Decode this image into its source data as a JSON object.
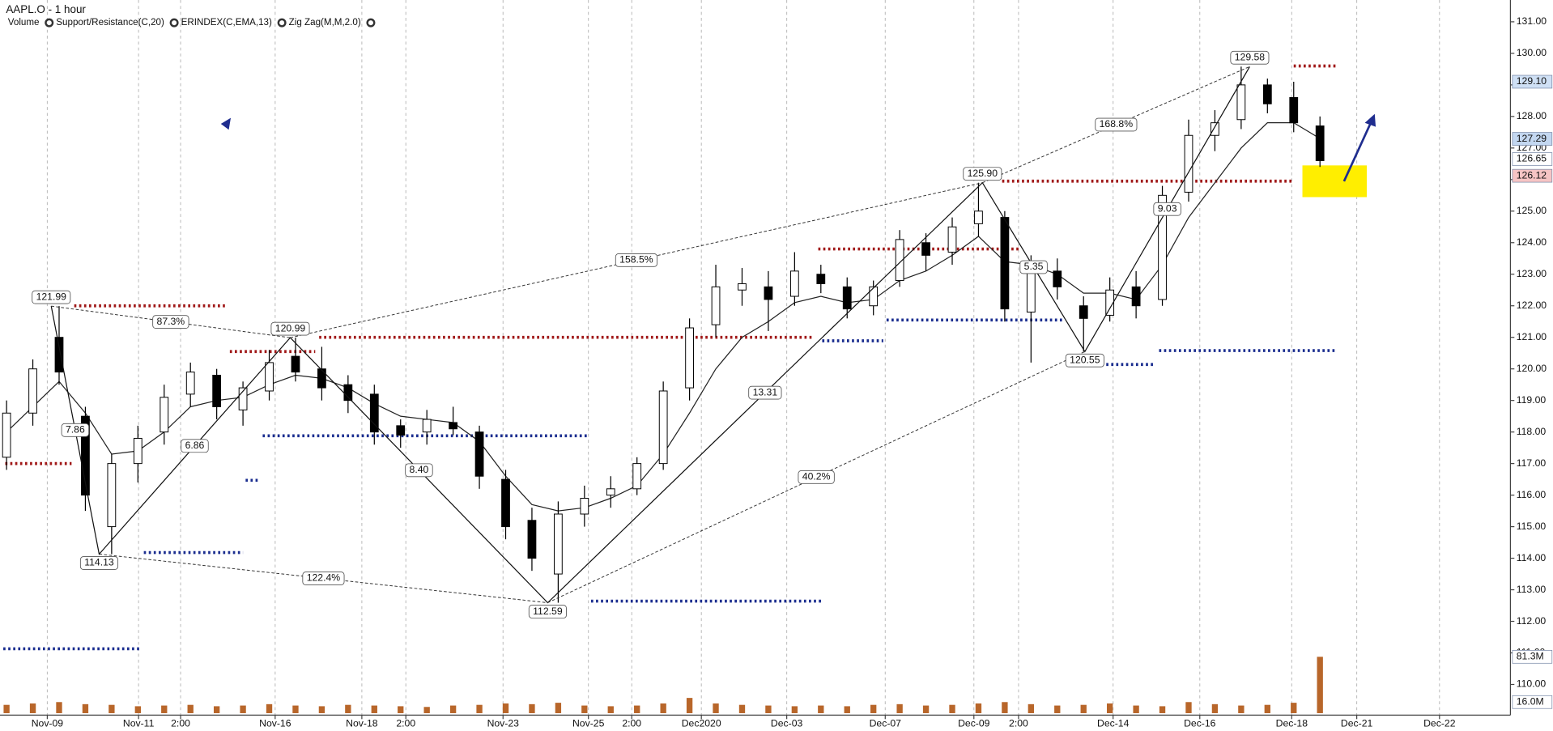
{
  "header": {
    "title": "AAPL.O - 1 hour",
    "indicators": [
      {
        "name": "Volume",
        "color": "#d86a00"
      },
      {
        "name": "Support/Resistance(C,20)",
        "color": "#a01818"
      },
      {
        "name": "ERINDEX(C,EMA,13)",
        "color": "#222222"
      },
      {
        "name": "Zig Zag(M,M,2.0)",
        "color": "#222222"
      }
    ]
  },
  "chart_data": {
    "type": "candlestick",
    "x": [
      1,
      5,
      9,
      13,
      17,
      21,
      25,
      29,
      33,
      37,
      41,
      45,
      49,
      53,
      57,
      61,
      65,
      69,
      73,
      77,
      81,
      85,
      89,
      93,
      97,
      101,
      105,
      109,
      113,
      117,
      121,
      125,
      129,
      133,
      137,
      141,
      145,
      149,
      153,
      157,
      161,
      165,
      169,
      173,
      177,
      181,
      185,
      189,
      193,
      197,
      201
    ],
    "open": [
      117.2,
      118.6,
      121.0,
      118.5,
      115.0,
      117.0,
      118.0,
      119.2,
      119.8,
      118.7,
      119.3,
      120.4,
      120.0,
      119.5,
      119.2,
      118.2,
      118.0,
      118.3,
      118.0,
      116.5,
      115.2,
      113.5,
      115.4,
      116.0,
      116.2,
      117.0,
      119.4,
      121.4,
      122.5,
      122.6,
      122.3,
      123.0,
      122.6,
      122.0,
      122.8,
      124.0,
      123.7,
      124.6,
      124.8,
      121.8,
      123.1,
      122.0,
      121.7,
      122.6,
      122.2,
      125.6,
      127.4,
      127.9,
      129.0,
      128.6,
      127.7
    ],
    "high": [
      119.0,
      120.3,
      121.99,
      118.8,
      117.3,
      118.2,
      119.5,
      120.2,
      120.0,
      119.6,
      120.6,
      120.99,
      120.7,
      119.8,
      119.5,
      118.4,
      118.7,
      118.8,
      118.2,
      116.8,
      115.6,
      115.8,
      116.3,
      116.6,
      117.2,
      119.6,
      121.6,
      123.3,
      123.2,
      123.1,
      123.7,
      123.3,
      122.9,
      122.8,
      124.4,
      124.3,
      124.8,
      125.9,
      125.0,
      123.6,
      123.5,
      122.3,
      122.9,
      123.1,
      125.8,
      127.9,
      128.2,
      129.58,
      129.2,
      129.1,
      128.0
    ],
    "low": [
      116.8,
      118.2,
      119.5,
      115.5,
      114.13,
      116.4,
      117.6,
      118.8,
      118.4,
      118.2,
      119.0,
      119.6,
      119.0,
      118.6,
      117.6,
      117.5,
      117.6,
      117.9,
      116.2,
      114.6,
      113.6,
      112.59,
      115.0,
      115.6,
      116.0,
      116.8,
      119.0,
      121.0,
      122.0,
      121.2,
      122.0,
      122.4,
      121.6,
      121.7,
      122.6,
      123.1,
      123.3,
      124.2,
      121.5,
      120.2,
      122.2,
      120.55,
      121.5,
      121.6,
      122.0,
      125.3,
      126.9,
      127.6,
      128.1,
      127.5,
      126.4
    ],
    "close": [
      118.6,
      120.0,
      119.9,
      116.0,
      117.0,
      117.8,
      119.1,
      119.9,
      118.8,
      119.4,
      120.2,
      119.9,
      119.4,
      119.0,
      118.0,
      117.9,
      118.4,
      118.1,
      116.6,
      115.0,
      114.0,
      115.4,
      115.9,
      116.2,
      117.0,
      119.3,
      121.3,
      122.6,
      122.7,
      122.2,
      123.1,
      122.7,
      121.9,
      122.6,
      124.1,
      123.6,
      124.5,
      125.0,
      121.9,
      123.2,
      122.6,
      121.6,
      122.5,
      122.0,
      125.5,
      127.4,
      127.8,
      129.0,
      128.4,
      127.8,
      126.6
    ],
    "ema": [
      118.0,
      118.8,
      119.6,
      118.6,
      117.3,
      117.4,
      118.0,
      118.8,
      119.0,
      119.1,
      119.5,
      119.8,
      119.7,
      119.4,
      118.9,
      118.5,
      118.4,
      118.3,
      117.7,
      116.6,
      115.7,
      115.5,
      115.6,
      115.9,
      116.3,
      117.3,
      118.6,
      120.0,
      121.0,
      121.5,
      122.1,
      122.3,
      122.1,
      122.2,
      122.8,
      123.1,
      123.6,
      124.2,
      123.4,
      123.3,
      123.0,
      122.4,
      122.4,
      122.2,
      123.3,
      124.8,
      125.9,
      127.0,
      127.8,
      127.8,
      127.3
    ],
    "up_color": "#ffffff",
    "down_color": "#000000",
    "ema_color": "#222222",
    "volume": {
      "values": [
        12,
        14,
        16,
        13,
        12,
        10,
        11,
        12,
        10,
        11,
        13,
        11,
        10,
        12,
        11,
        10,
        9,
        11,
        12,
        14,
        13,
        15,
        11,
        10,
        11,
        14,
        22,
        14,
        12,
        11,
        10,
        11,
        10,
        12,
        13,
        11,
        12,
        14,
        16,
        13,
        11,
        12,
        14,
        11,
        10,
        16,
        13,
        11,
        12,
        15,
        81.3
      ],
      "ylim": [
        0,
        90
      ],
      "color": "#b8662a",
      "markers": [
        {
          "value": 81.3,
          "label": "81.3M"
        },
        {
          "value": 16.0,
          "label": "16.0M"
        }
      ]
    },
    "zigzag": {
      "x": [
        7.8,
        15.1,
        44.2,
        83.4,
        149.6,
        165.2,
        190.3
      ],
      "values": [
        121.99,
        114.13,
        120.99,
        112.59,
        125.9,
        120.55,
        129.58
      ],
      "value_labels": [
        "121.99",
        "114.13",
        "120.99",
        "112.59",
        "125.90",
        "120.55",
        "129.58"
      ],
      "swing_labels": [
        "7.86",
        "6.86",
        "8.40",
        "13.31",
        "5.35",
        "9.03"
      ],
      "ratio_labels": [
        "87.3%",
        "122.4%",
        "158.5%",
        "40.2%",
        "168.8%"
      ]
    },
    "levels": [
      {
        "price": 117.0,
        "start": 0.8,
        "end": 10.9,
        "color": "#a01818"
      },
      {
        "price": 122.0,
        "start": 11.3,
        "end": 34.4,
        "color": "#a01818"
      },
      {
        "price": 120.55,
        "start": 35,
        "end": 48,
        "color": "#a01818"
      },
      {
        "price": 121.0,
        "start": 48.6,
        "end": 123.7,
        "color": "#a01818"
      },
      {
        "price": 123.8,
        "start": 124.6,
        "end": 155.4,
        "color": "#a01818"
      },
      {
        "price": 125.95,
        "start": 152.6,
        "end": 196.8,
        "color": "#a01818"
      },
      {
        "price": 129.6,
        "start": 197,
        "end": 203.6,
        "color": "#a01818"
      },
      {
        "price": 111.13,
        "start": 0.5,
        "end": 21.4,
        "color": "#1a2d8f"
      },
      {
        "price": 114.18,
        "start": 21.9,
        "end": 37,
        "color": "#1a2d8f"
      },
      {
        "price": 116.47,
        "start": 37.4,
        "end": 39.5,
        "color": "#1a2d8f"
      },
      {
        "price": 117.88,
        "start": 40,
        "end": 89.7,
        "color": "#1a2d8f"
      },
      {
        "price": 112.64,
        "start": 90,
        "end": 125.2,
        "color": "#1a2d8f"
      },
      {
        "price": 120.89,
        "start": 125.2,
        "end": 134.5,
        "color": "#1a2d8f"
      },
      {
        "price": 121.55,
        "start": 135,
        "end": 162,
        "color": "#1a2d8f"
      },
      {
        "price": 120.14,
        "start": 167.7,
        "end": 175.7,
        "color": "#1a2d8f"
      },
      {
        "price": 120.58,
        "start": 176.5,
        "end": 203.6,
        "color": "#1a2d8f"
      }
    ],
    "xlim": [
      0,
      230
    ],
    "xticks": [
      {
        "value": 7.2,
        "label": "Nov-09"
      },
      {
        "value": 21.1,
        "label": "Nov-11"
      },
      {
        "value": 27.5,
        "label": "2:00"
      },
      {
        "value": 41.9,
        "label": "Nov-16"
      },
      {
        "value": 55.1,
        "label": "Nov-18"
      },
      {
        "value": 61.8,
        "label": "2:00"
      },
      {
        "value": 76.6,
        "label": "Nov-23"
      },
      {
        "value": 89.6,
        "label": "Nov-25"
      },
      {
        "value": 96.2,
        "label": "2:00"
      },
      {
        "value": 106.8,
        "label": "Dec2020"
      },
      {
        "value": 119.8,
        "label": "Dec-03"
      },
      {
        "value": 134.8,
        "label": "Dec-07"
      },
      {
        "value": 148.3,
        "label": "Dec-09"
      },
      {
        "value": 155.1,
        "label": "2:00"
      },
      {
        "value": 169.5,
        "label": "Dec-14"
      },
      {
        "value": 182.7,
        "label": "Dec-16"
      },
      {
        "value": 196.7,
        "label": "Dec-18"
      },
      {
        "value": 206.6,
        "label": "Dec-21"
      },
      {
        "value": 219.2,
        "label": "Dec-22"
      }
    ],
    "ylim": [
      110,
      131
    ],
    "yticks": [
      {
        "value": 110,
        "label": "110.00"
      },
      {
        "value": 111,
        "label": "111.00"
      },
      {
        "value": 112,
        "label": "112.00"
      },
      {
        "value": 113,
        "label": "113.00"
      },
      {
        "value": 114,
        "label": "114.00"
      },
      {
        "value": 115,
        "label": "115.00"
      },
      {
        "value": 116,
        "label": "116.00"
      },
      {
        "value": 117,
        "label": "117.00"
      },
      {
        "value": 118,
        "label": "118.00"
      },
      {
        "value": 119,
        "label": "119.00"
      },
      {
        "value": 120,
        "label": "120.00"
      },
      {
        "value": 121,
        "label": "121.00"
      },
      {
        "value": 122,
        "label": "122.00"
      },
      {
        "value": 123,
        "label": "123.00"
      },
      {
        "value": 124,
        "label": "124.00"
      },
      {
        "value": 125,
        "label": "125.00"
      },
      {
        "value": 126,
        "label": "126.00"
      },
      {
        "value": 127,
        "label": "127.00"
      },
      {
        "value": 128,
        "label": "128.00"
      },
      {
        "value": 129,
        "label": "129.00"
      },
      {
        "value": 130,
        "label": "130.00"
      },
      {
        "value": 131,
        "label": "131.00"
      }
    ],
    "price_markers": [
      {
        "value": 129.1,
        "label": "129.10",
        "color": "#cfe0f5"
      },
      {
        "value": 127.29,
        "label": "127.29",
        "color": "#c3d7f0"
      },
      {
        "value": 126.65,
        "label": "126.65",
        "color": "#ffffff"
      },
      {
        "value": 126.12,
        "label": "126.12",
        "color": "#f6c4c4"
      }
    ],
    "grid": true
  }
}
